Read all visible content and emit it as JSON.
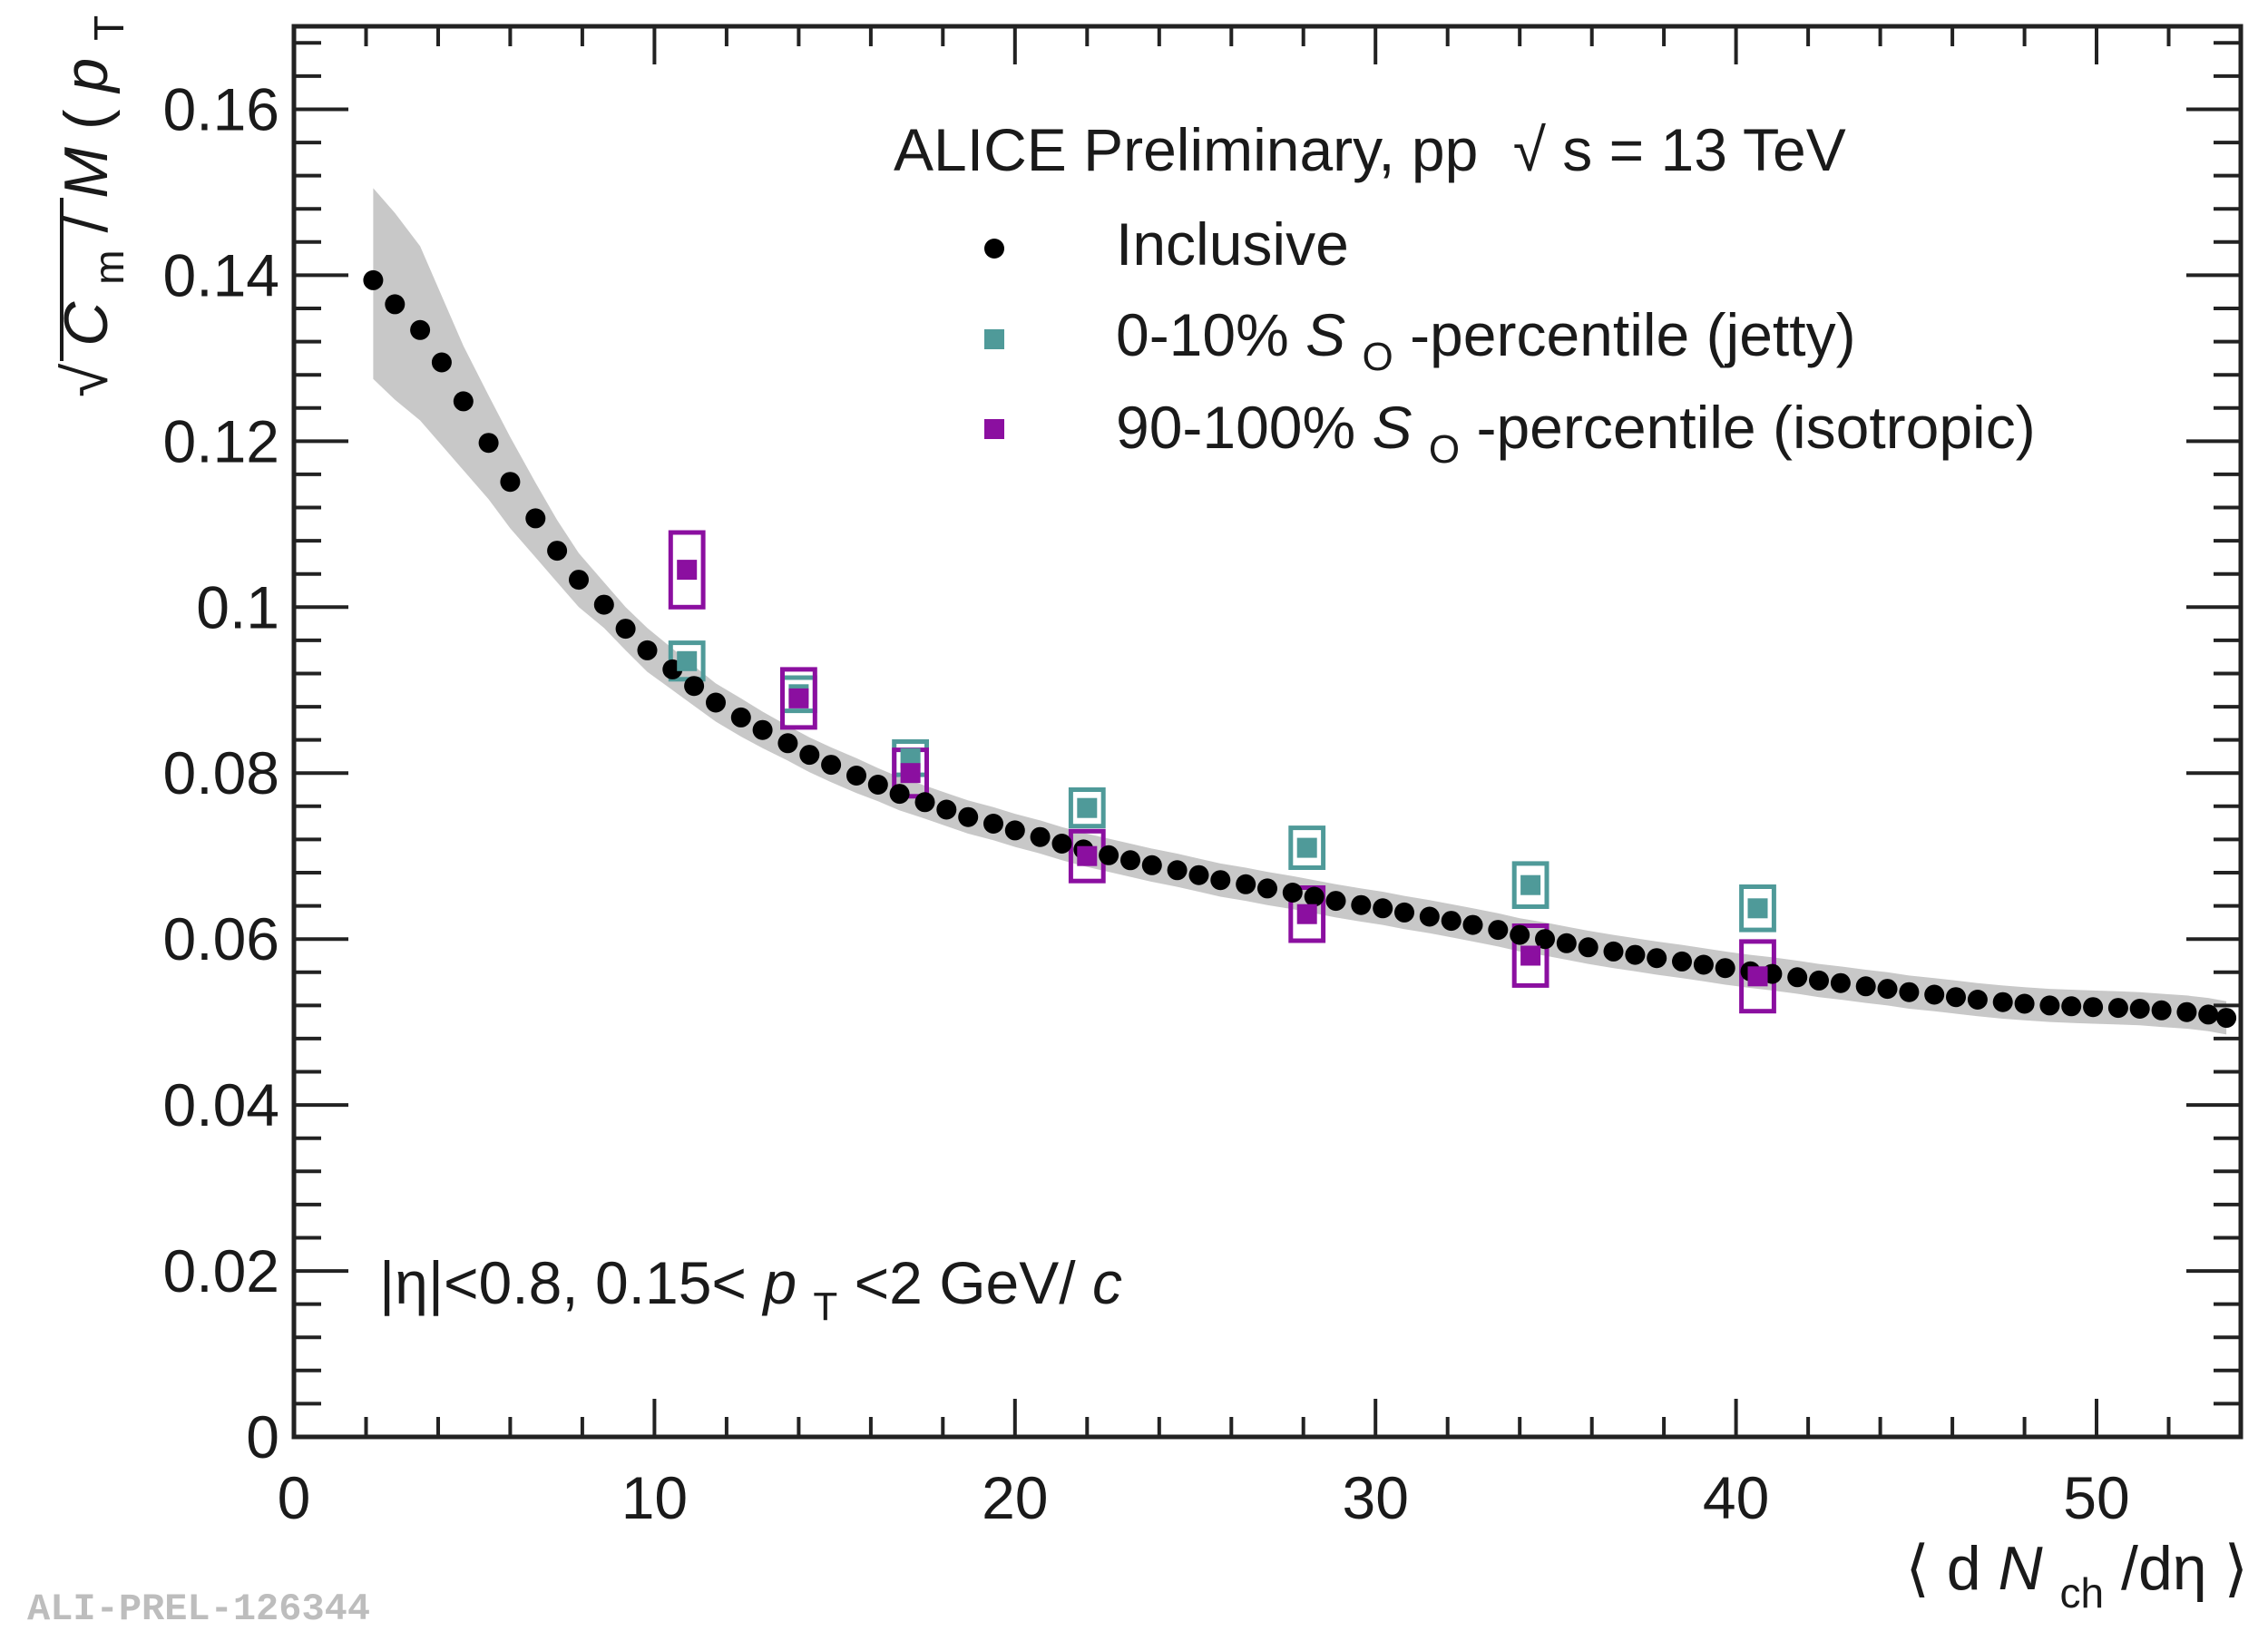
{
  "chart_data": {
    "type": "scatter",
    "title": "",
    "header": {
      "prefix": "ALICE Preliminary, pp",
      "sqrt": "√",
      "energy": "s = 13 TeV"
    },
    "cut_label": {
      "eta": "|η|<0.8, 0.15<",
      "pt_p": "p",
      "pt_sub": "T",
      "pt_rest": "<2 GeV/",
      "c": "c"
    },
    "watermark": "ALI-PREL-126344",
    "xlabel": {
      "open": "⟨ d",
      "N": "N",
      "sub": "ch",
      "rest": "/dη ⟩"
    },
    "ylabel": {
      "sqrt": "√",
      "C": "C",
      "C_sub": "m",
      "slash": "/",
      "M": "M",
      "paren_open": "(",
      "p": "p",
      "p_sub": "T",
      "paren_close": ")",
      "outer_sub": "m"
    },
    "xlim": [
      0,
      54
    ],
    "ylim": [
      0,
      0.17
    ],
    "x_ticks": [
      "0",
      "10",
      "20",
      "30",
      "40",
      "50"
    ],
    "y_ticks": [
      "0",
      "0.02",
      "0.04",
      "0.06",
      "0.08",
      "0.1",
      "0.12",
      "0.14",
      "0.16"
    ],
    "grid": false,
    "legend_position": "top-right",
    "series": [
      {
        "name": "Inclusive",
        "color": "#000000",
        "marker": "circle",
        "x": [
          2.2,
          2.8,
          3.5,
          4.1,
          4.7,
          5.4,
          6.0,
          6.7,
          7.3,
          7.9,
          8.6,
          9.2,
          9.8,
          10.5,
          11.1,
          11.7,
          12.4,
          13.0,
          13.7,
          14.3,
          14.9,
          15.6,
          16.2,
          16.8,
          17.5,
          18.1,
          18.7,
          19.4,
          20.0,
          20.7,
          21.3,
          21.9,
          22.6,
          23.2,
          23.8,
          24.5,
          25.1,
          25.7,
          26.4,
          27.0,
          27.7,
          28.3,
          28.9,
          29.6,
          30.2,
          30.8,
          31.5,
          32.1,
          32.7,
          33.4,
          34.0,
          34.7,
          35.3,
          35.9,
          36.6,
          37.2,
          37.8,
          38.5,
          39.1,
          39.7,
          40.4,
          41.0,
          41.7,
          42.3,
          42.9,
          43.6,
          44.2,
          44.8,
          45.5,
          46.1,
          46.7,
          47.4,
          48.0,
          48.7,
          49.3,
          49.9,
          50.6,
          51.2,
          51.8,
          52.5,
          53.1,
          53.6
        ],
        "y": [
          0.1394,
          0.1365,
          0.1334,
          0.1295,
          0.1248,
          0.1198,
          0.1151,
          0.1107,
          0.1068,
          0.1033,
          0.1003,
          0.0974,
          0.0948,
          0.0925,
          0.0905,
          0.0885,
          0.0867,
          0.0852,
          0.0836,
          0.0822,
          0.081,
          0.0797,
          0.0786,
          0.0775,
          0.0765,
          0.0756,
          0.0747,
          0.0739,
          0.0731,
          0.0723,
          0.0715,
          0.0708,
          0.0701,
          0.0695,
          0.0689,
          0.0683,
          0.0677,
          0.0671,
          0.0666,
          0.0661,
          0.0656,
          0.0651,
          0.0646,
          0.0641,
          0.0637,
          0.0632,
          0.0627,
          0.0622,
          0.0617,
          0.0611,
          0.0605,
          0.06,
          0.0595,
          0.059,
          0.0585,
          0.0581,
          0.0577,
          0.0573,
          0.0569,
          0.0565,
          0.0561,
          0.0558,
          0.0554,
          0.055,
          0.0547,
          0.0543,
          0.054,
          0.0536,
          0.0533,
          0.053,
          0.0527,
          0.0524,
          0.0522,
          0.052,
          0.0519,
          0.0518,
          0.0517,
          0.0516,
          0.0514,
          0.0512,
          0.0509,
          0.0505
        ],
        "sys_band_upper": [
          0.1505,
          0.1475,
          0.1435,
          0.1375,
          0.1315,
          0.1255,
          0.1205,
          0.115,
          0.1105,
          0.1065,
          0.103,
          0.1,
          0.0975,
          0.095,
          0.0929,
          0.0908,
          0.089,
          0.0874,
          0.0857,
          0.0843,
          0.0831,
          0.0818,
          0.0806,
          0.0795,
          0.0785,
          0.0776,
          0.0767,
          0.0759,
          0.0751,
          0.0743,
          0.0735,
          0.0728,
          0.0721,
          0.0715,
          0.0709,
          0.0703,
          0.0697,
          0.0691,
          0.0686,
          0.0681,
          0.0676,
          0.0671,
          0.0666,
          0.0661,
          0.0657,
          0.0652,
          0.0647,
          0.0642,
          0.0637,
          0.0631,
          0.0625,
          0.062,
          0.0615,
          0.061,
          0.0605,
          0.0601,
          0.0597,
          0.0593,
          0.0589,
          0.0585,
          0.0581,
          0.0578,
          0.0574,
          0.057,
          0.0567,
          0.0563,
          0.056,
          0.0556,
          0.0553,
          0.055,
          0.0547,
          0.0544,
          0.0542,
          0.054,
          0.0539,
          0.0538,
          0.0537,
          0.0536,
          0.0534,
          0.0532,
          0.0529,
          0.0525
        ],
        "sys_band_lower": [
          0.1275,
          0.125,
          0.1225,
          0.1195,
          0.1165,
          0.113,
          0.1095,
          0.106,
          0.103,
          0.1,
          0.0975,
          0.0948,
          0.0922,
          0.09,
          0.0881,
          0.0862,
          0.0844,
          0.083,
          0.0815,
          0.0801,
          0.0789,
          0.0776,
          0.0766,
          0.0755,
          0.0745,
          0.0736,
          0.0727,
          0.0719,
          0.0711,
          0.0703,
          0.0695,
          0.0688,
          0.0681,
          0.0675,
          0.0669,
          0.0663,
          0.0657,
          0.0651,
          0.0646,
          0.0641,
          0.0636,
          0.0631,
          0.0626,
          0.0621,
          0.0617,
          0.0612,
          0.0607,
          0.0602,
          0.0597,
          0.0591,
          0.0585,
          0.058,
          0.0575,
          0.057,
          0.0565,
          0.0561,
          0.0557,
          0.0553,
          0.0549,
          0.0545,
          0.0541,
          0.0538,
          0.0534,
          0.053,
          0.0527,
          0.0523,
          0.052,
          0.0516,
          0.0513,
          0.051,
          0.0507,
          0.0504,
          0.0502,
          0.05,
          0.0499,
          0.0498,
          0.0497,
          0.0496,
          0.0494,
          0.0492,
          0.0489,
          0.0485
        ]
      },
      {
        "name": "0-10% SO-percentile (jetty)",
        "legend_pre": "0-10% ",
        "legend_S": "S",
        "legend_sub": "O",
        "legend_post": "-percentile (jetty)",
        "color": "#4f9a99",
        "marker": "square",
        "x": [
          10.9,
          14.0,
          17.1,
          22.0,
          28.1,
          34.3,
          40.6
        ],
        "y": [
          0.0935,
          0.0895,
          0.0818,
          0.0758,
          0.071,
          0.0665,
          0.0637
        ],
        "sys_err": [
          0.0022,
          0.002,
          0.002,
          0.0022,
          0.0024,
          0.0026,
          0.0026
        ]
      },
      {
        "name": "90-100% SO-percentile (isotropic)",
        "legend_pre": "90-100% ",
        "legend_S": "S",
        "legend_sub": "O",
        "legend_post": "-percentile (isotropic)",
        "color": "#8b0fa0",
        "marker": "square",
        "x": [
          10.9,
          14.0,
          17.1,
          22.0,
          28.1,
          34.3,
          40.6
        ],
        "y": [
          0.1045,
          0.089,
          0.08,
          0.07,
          0.063,
          0.058,
          0.0555
        ],
        "sys_err": [
          0.0045,
          0.0035,
          0.0028,
          0.003,
          0.0032,
          0.0036,
          0.0042
        ]
      }
    ]
  }
}
